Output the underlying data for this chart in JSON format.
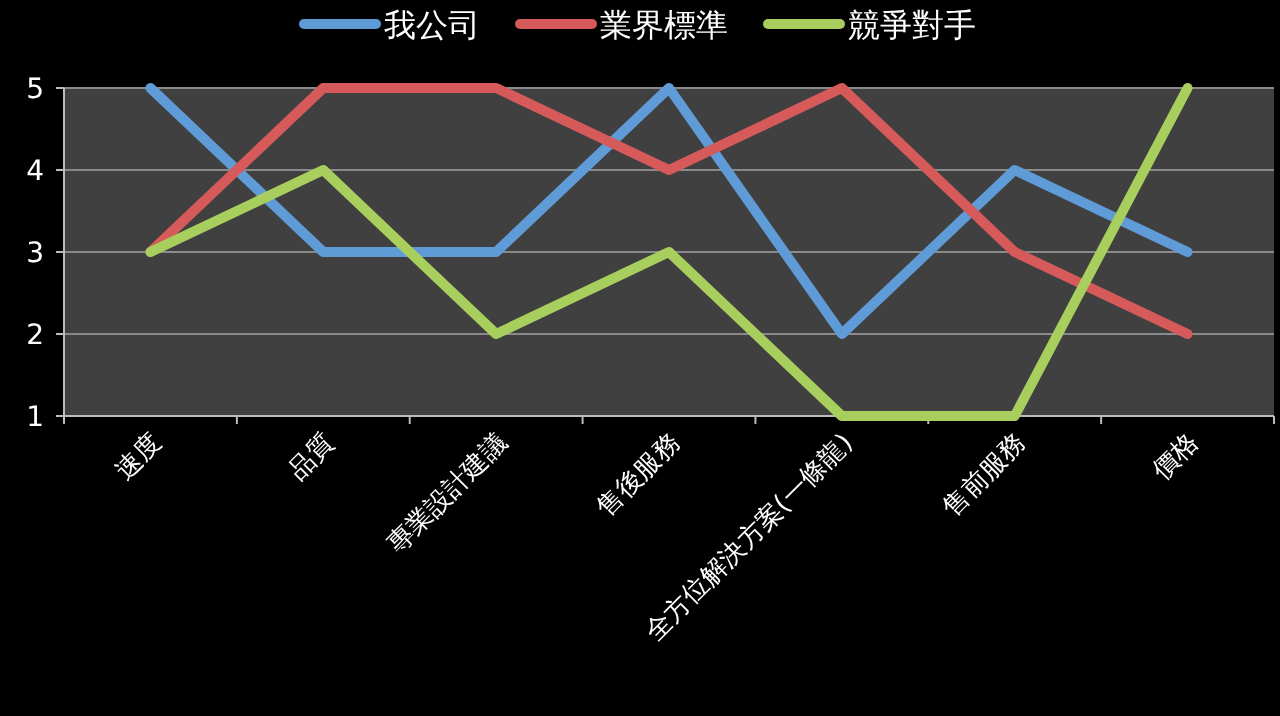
{
  "chart_data": {
    "type": "line",
    "categories": [
      "速度",
      "品質",
      "專業設計建議",
      "售後服務",
      "全方位解決方案(一條龍)",
      "售前服務",
      "價格"
    ],
    "series": [
      {
        "name": "我公司",
        "color": "#5f9bd6",
        "values": [
          5,
          3,
          3,
          5,
          2,
          4,
          3
        ]
      },
      {
        "name": "業界標準",
        "color": "#d65a5a",
        "values": [
          3,
          5,
          5,
          4,
          5,
          3,
          2
        ]
      },
      {
        "name": "競爭對手",
        "color": "#a8cf5e",
        "values": [
          3,
          4,
          2,
          3,
          1,
          1,
          5
        ]
      }
    ],
    "ylim": [
      1,
      5
    ],
    "yticks": [
      1,
      2,
      3,
      4,
      5
    ],
    "grid": "y",
    "legend": "top",
    "marker": "none",
    "line_style": "solid"
  }
}
